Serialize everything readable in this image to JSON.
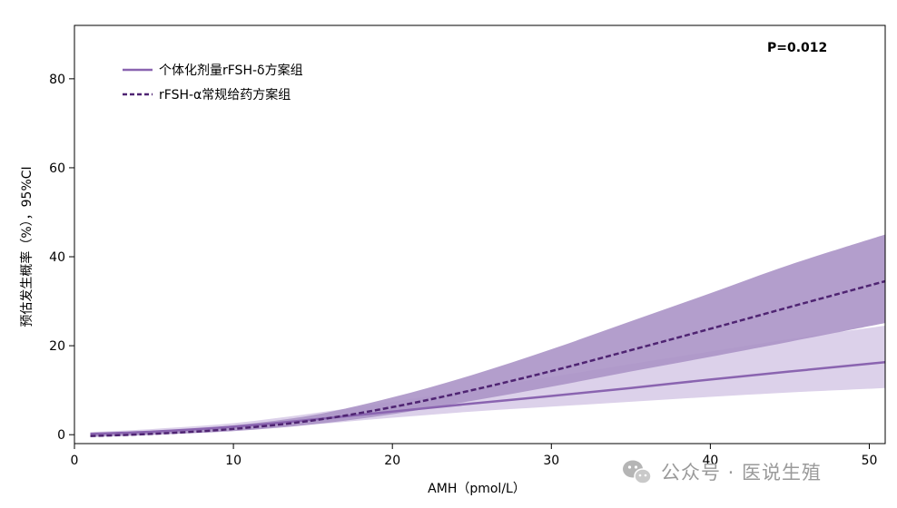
{
  "chart_data": {
    "type": "line",
    "title": "",
    "xlabel": "AMH（pmol/L）",
    "ylabel": "预估发生概率（%），95%CI",
    "xlim": [
      0,
      51
    ],
    "ylim": [
      -2,
      92
    ],
    "xticks": [
      0,
      10,
      20,
      30,
      40,
      50
    ],
    "yticks": [
      0,
      20,
      40,
      60,
      80
    ],
    "grid": false,
    "legend_position": "top-left",
    "annotation": "P=0.012",
    "series": [
      {
        "name": "个体化剂量rFSH-δ方案组",
        "style": "solid",
        "color": "#8a64b0",
        "band_color": "#dcd1ea",
        "x": [
          1,
          5,
          10,
          15,
          20,
          25,
          30,
          35,
          40,
          45,
          51
        ],
        "y": [
          0.2,
          0.7,
          1.8,
          3.4,
          5.2,
          7.0,
          8.7,
          10.5,
          12.4,
          14.2,
          16.3
        ],
        "lower": [
          0.05,
          0.3,
          1.0,
          2.3,
          3.8,
          5.2,
          6.3,
          7.4,
          8.5,
          9.5,
          10.5
        ],
        "upper": [
          0.6,
          1.3,
          2.6,
          4.8,
          7.4,
          10.2,
          13.0,
          15.9,
          18.7,
          21.5,
          24.5
        ]
      },
      {
        "name": "rFSH-α常规给药方案组",
        "style": "dashed",
        "color": "#4f2472",
        "band_color": "#ab93c7",
        "x": [
          1,
          5,
          10,
          15,
          20,
          25,
          30,
          35,
          40,
          45,
          51
        ],
        "y": [
          -0.3,
          0.2,
          1.3,
          3.2,
          6.2,
          10.0,
          14.3,
          19.0,
          23.8,
          28.7,
          34.5
        ],
        "lower": [
          -0.5,
          0.0,
          0.8,
          2.3,
          4.6,
          7.6,
          10.8,
          14.2,
          17.5,
          20.9,
          25.1
        ],
        "upper": [
          0.2,
          0.8,
          2.1,
          4.4,
          8.4,
          13.4,
          19.2,
          25.5,
          31.8,
          38.2,
          45.0
        ]
      }
    ]
  },
  "watermark": {
    "icon": "wechat-icon",
    "text": "公众号 · 医说生殖"
  }
}
